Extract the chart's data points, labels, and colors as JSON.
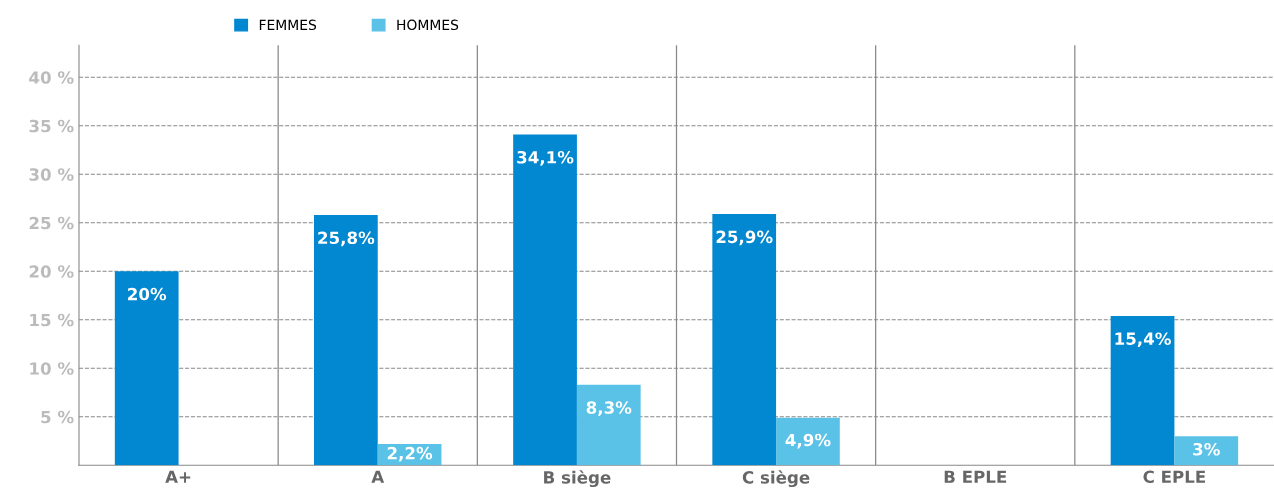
{
  "chart_data": {
    "type": "bar",
    "categories": [
      "A+",
      "A",
      "B siège",
      "C siège",
      "B EPLE",
      "C EPLE"
    ],
    "series": [
      {
        "name": "FEMMES",
        "color": "#0288d1",
        "values": [
          20,
          25.8,
          34.1,
          25.9,
          null,
          15.4
        ],
        "value_labels": [
          "20%",
          "25,8%",
          "34,1%",
          "25,9%",
          null,
          "15,4%"
        ]
      },
      {
        "name": "HOMMES",
        "color": "#5bc2e7",
        "values": [
          null,
          2.2,
          8.3,
          4.9,
          null,
          3
        ],
        "value_labels": [
          null,
          "2,2%",
          "8,3%",
          "4,9%",
          null,
          "3%"
        ]
      }
    ],
    "ylim": [
      0,
      43.3
    ],
    "yticks": [
      {
        "value": 5,
        "label": "5 %"
      },
      {
        "value": 10,
        "label": "10 %"
      },
      {
        "value": 15,
        "label": "15 %"
      },
      {
        "value": 20,
        "label": "20 %"
      },
      {
        "value": 25,
        "label": "25 %"
      },
      {
        "value": 30,
        "label": "30 %"
      },
      {
        "value": 35,
        "label": "35 %"
      },
      {
        "value": 40,
        "label": "40 %"
      }
    ],
    "grid": "y",
    "legend": "top left"
  }
}
